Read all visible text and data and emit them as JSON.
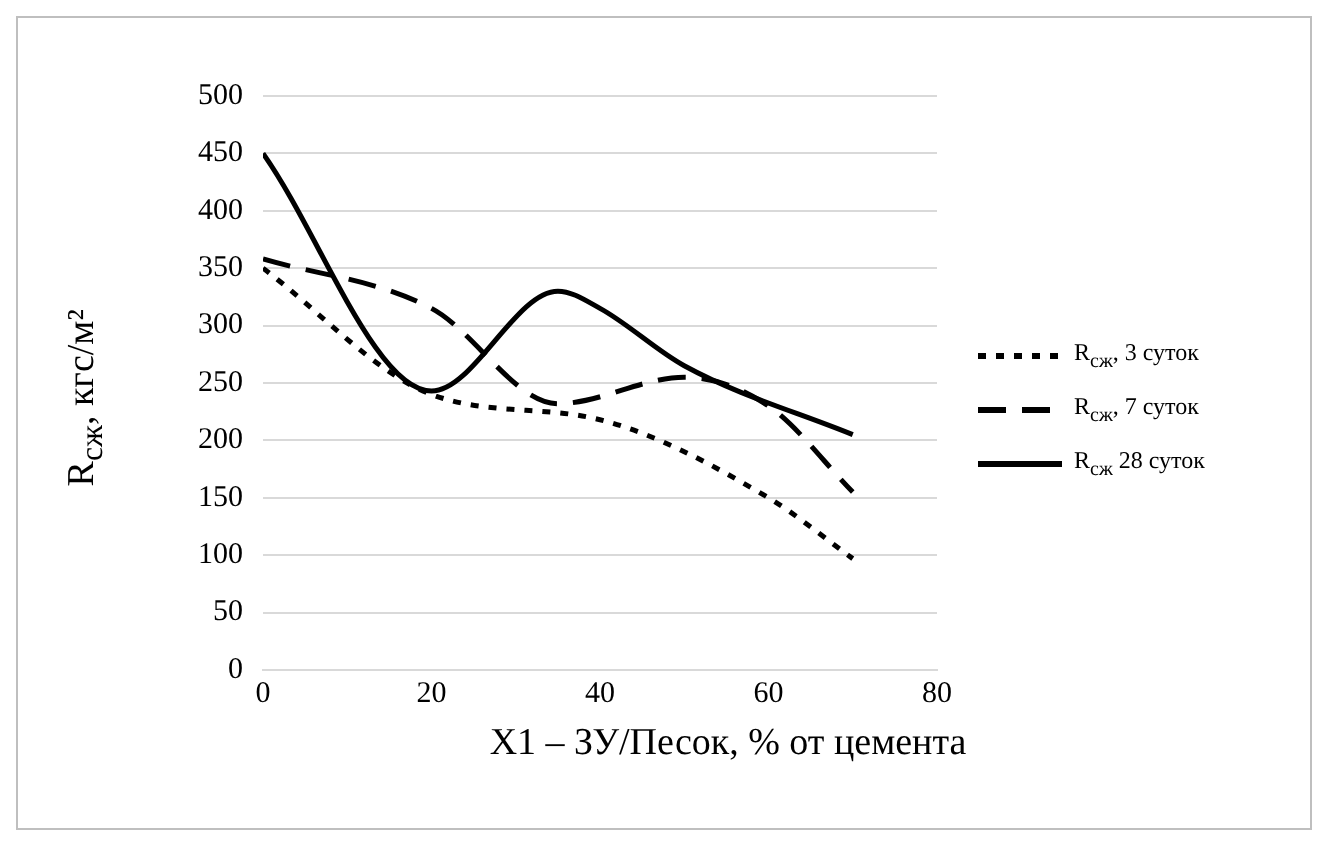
{
  "chart_data": {
    "type": "line",
    "xlabel": "X1 – ЗУ/Песок, % от цемента",
    "ylabel": "R$_{сж}$, кгс/м²",
    "xlim": [
      0,
      80
    ],
    "xticks": [
      0,
      20,
      40,
      60,
      80
    ],
    "ylim": [
      0,
      500
    ],
    "yticks": [
      0,
      50,
      100,
      150,
      200,
      250,
      300,
      350,
      400,
      450,
      500
    ],
    "grid": "y",
    "legend": "right",
    "marker": "none",
    "series": [
      {
        "name": "R$_{сж}$, 3 суток",
        "color": "#000000",
        "line_style": "dotted",
        "x": [
          0,
          20,
          40,
          60,
          70
        ],
        "values": [
          350,
          240,
          218,
          150,
          97
        ]
      },
      {
        "name": "R$_{сж}$, 7 суток",
        "color": "#000000",
        "line_style": "dashed",
        "x": [
          0,
          20,
          35,
          50,
          60,
          70
        ],
        "values": [
          358,
          315,
          232,
          255,
          230,
          155
        ]
      },
      {
        "name": "R$_{сж}$ 28 суток",
        "color": "#000000",
        "line_style": "solid",
        "x": [
          0,
          20,
          35,
          40,
          50,
          70
        ],
        "values": [
          450,
          243,
          330,
          315,
          265,
          205
        ]
      }
    ]
  }
}
